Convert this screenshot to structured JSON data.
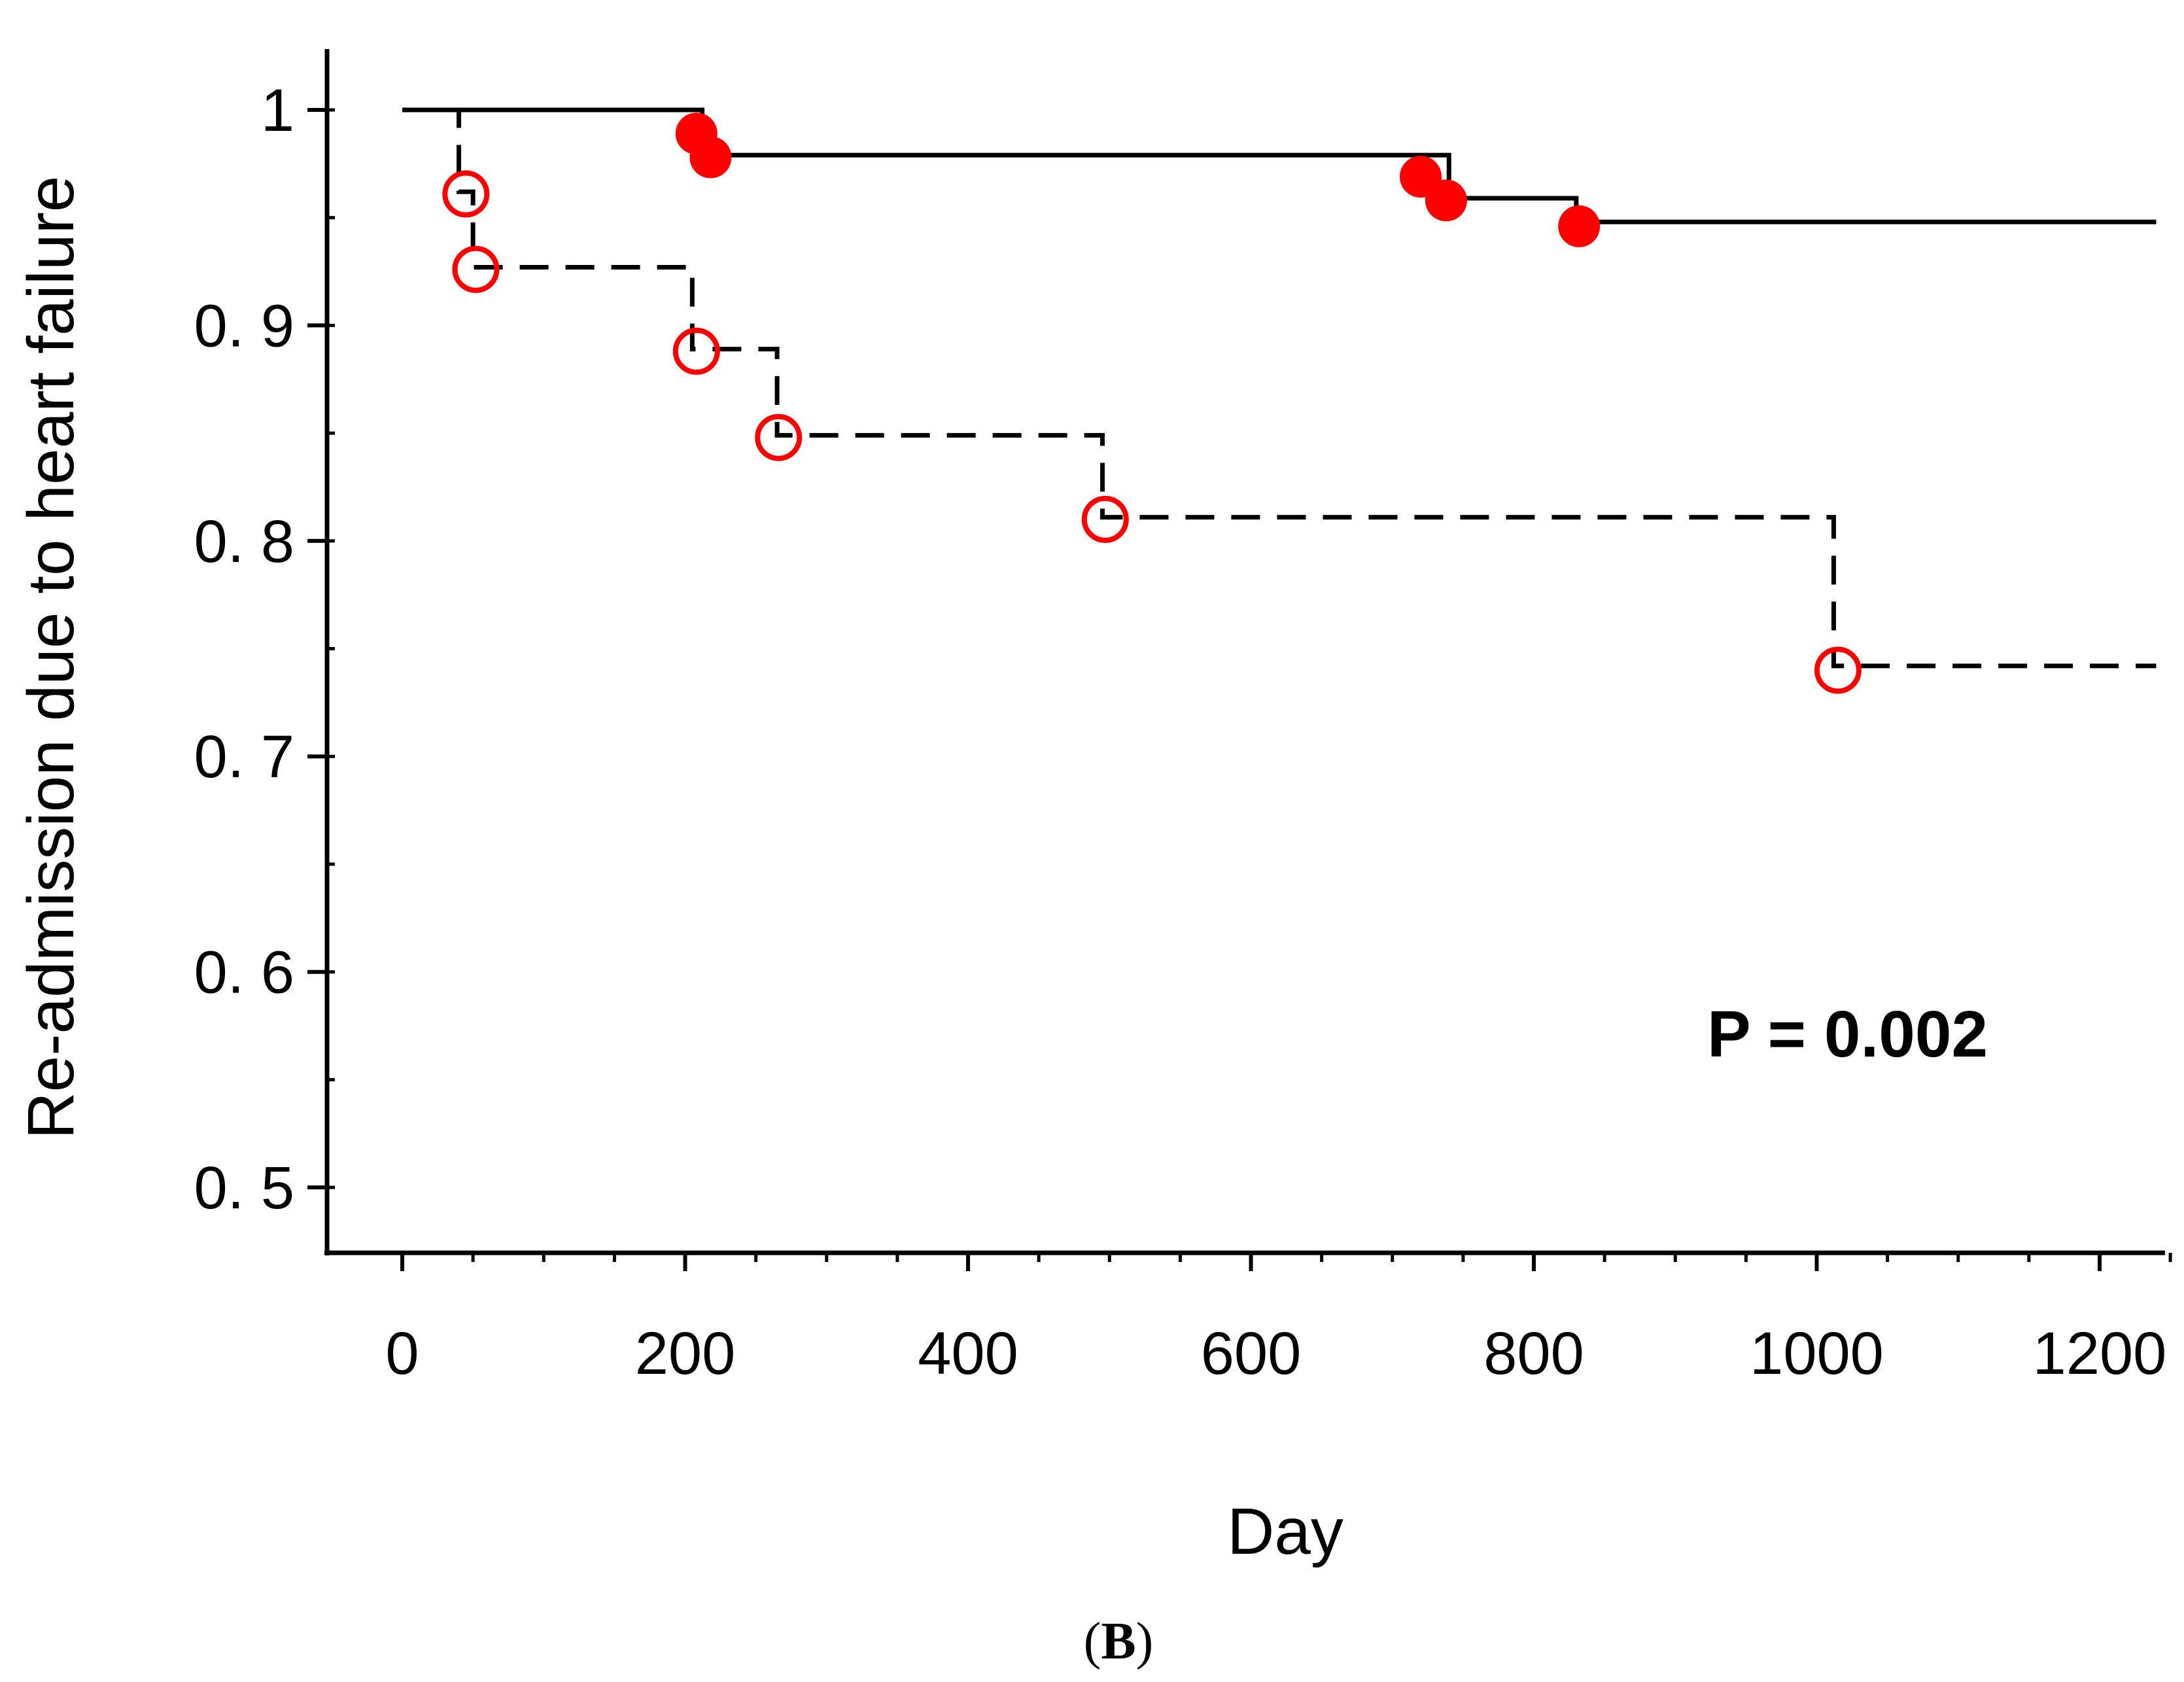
{
  "chart_data": {
    "type": "line",
    "subtype": "kaplan-meier",
    "xlabel": "Day",
    "ylabel": "Re-admission due to heart failure",
    "xlim": [
      0,
      1250
    ],
    "ylim": [
      0.48,
      1.03
    ],
    "xticks": [
      0,
      200,
      400,
      600,
      800,
      1000,
      1200
    ],
    "xtick_labels": [
      "0",
      "200",
      "400",
      "600",
      "800",
      "1000",
      "1200"
    ],
    "yticks": [
      0.5,
      0.6,
      0.7,
      0.8,
      0.9,
      1
    ],
    "ytick_labels": [
      "0. 5",
      "0. 6",
      "0. 7",
      "0. 8",
      "0. 9",
      "1"
    ],
    "series": [
      {
        "name": "solid",
        "style": "solid",
        "color": "#000000",
        "steps": [
          [
            0,
            1.0
          ],
          [
            212,
            0.979
          ],
          [
            740,
            0.959
          ],
          [
            830,
            0.948
          ],
          [
            1240,
            0.948
          ]
        ],
        "markers": {
          "style": "filled",
          "color": "#ff0000",
          "points": [
            [
              208,
              0.989
            ],
            [
              218,
              0.978
            ],
            [
              720,
              0.969
            ],
            [
              738,
              0.958
            ],
            [
              832,
              0.946
            ]
          ]
        }
      },
      {
        "name": "dashed",
        "style": "dashed",
        "color": "#000000",
        "steps": [
          [
            0,
            1.0
          ],
          [
            40,
            0.962
          ],
          [
            50,
            0.927
          ],
          [
            205,
            0.889
          ],
          [
            265,
            0.849
          ],
          [
            495,
            0.811
          ],
          [
            1012,
            0.742
          ],
          [
            1240,
            0.742
          ]
        ],
        "markers": {
          "style": "open",
          "color": "#ff0000",
          "points": [
            [
              45,
              0.961
            ],
            [
              52,
              0.926
            ],
            [
              208,
              0.888
            ],
            [
              266,
              0.848
            ],
            [
              497,
              0.81
            ],
            [
              1015,
              0.74
            ]
          ]
        }
      }
    ],
    "annotations": [
      {
        "text": "P = 0.002",
        "x": 1040,
        "y": 0.57
      }
    ],
    "caption": "(B)"
  },
  "colors": {
    "axis": "#000000",
    "marker": "#ff0000"
  }
}
